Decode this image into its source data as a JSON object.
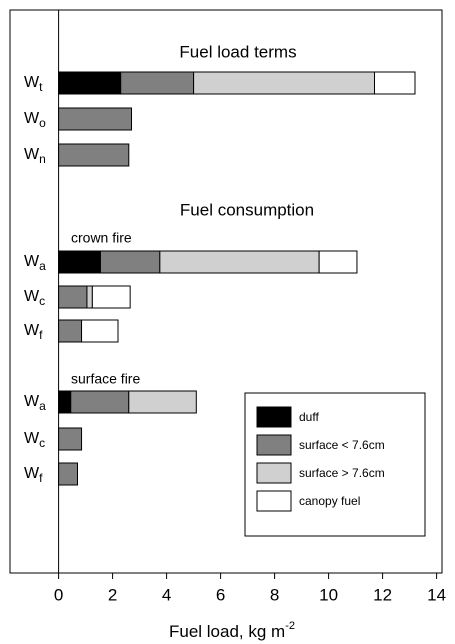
{
  "chart_data": {
    "type": "stacked_barh",
    "xlabel": "Fuel load, kg m-2",
    "annotations": [
      "Fuel load terms",
      "Fuel consumption",
      "crown fire",
      "surface fire"
    ],
    "categories": [
      "Wt",
      "Wo",
      "Wn",
      "Wa",
      "Wc",
      "Wf",
      "Wa",
      "Wc",
      "Wf"
    ],
    "series": [
      {
        "name": "duff",
        "color": "#000000",
        "values": [
          2.3,
          null,
          null,
          1.55,
          null,
          null,
          0.45,
          null,
          null
        ]
      },
      {
        "name": "surface < 7.6cm",
        "color": "#808080",
        "values": [
          2.7,
          2.7,
          2.6,
          2.2,
          1.05,
          0.85,
          2.15,
          0.85,
          0.7
        ]
      },
      {
        "name": "surface > 7.6cm",
        "color": "#d0d0d0",
        "values": [
          6.7,
          null,
          null,
          5.9,
          0.2,
          null,
          2.5,
          null,
          null
        ]
      },
      {
        "name": "canopy fuel",
        "color": "#ffffff",
        "values": [
          1.5,
          null,
          null,
          1.4,
          1.4,
          1.35,
          null,
          null,
          null
        ]
      }
    ],
    "xlim": [
      -1.8,
      14.2
    ],
    "xticks": [
      0,
      2,
      4,
      6,
      8,
      10,
      12,
      14
    ],
    "legend": "lower right",
    "grid": false
  }
}
